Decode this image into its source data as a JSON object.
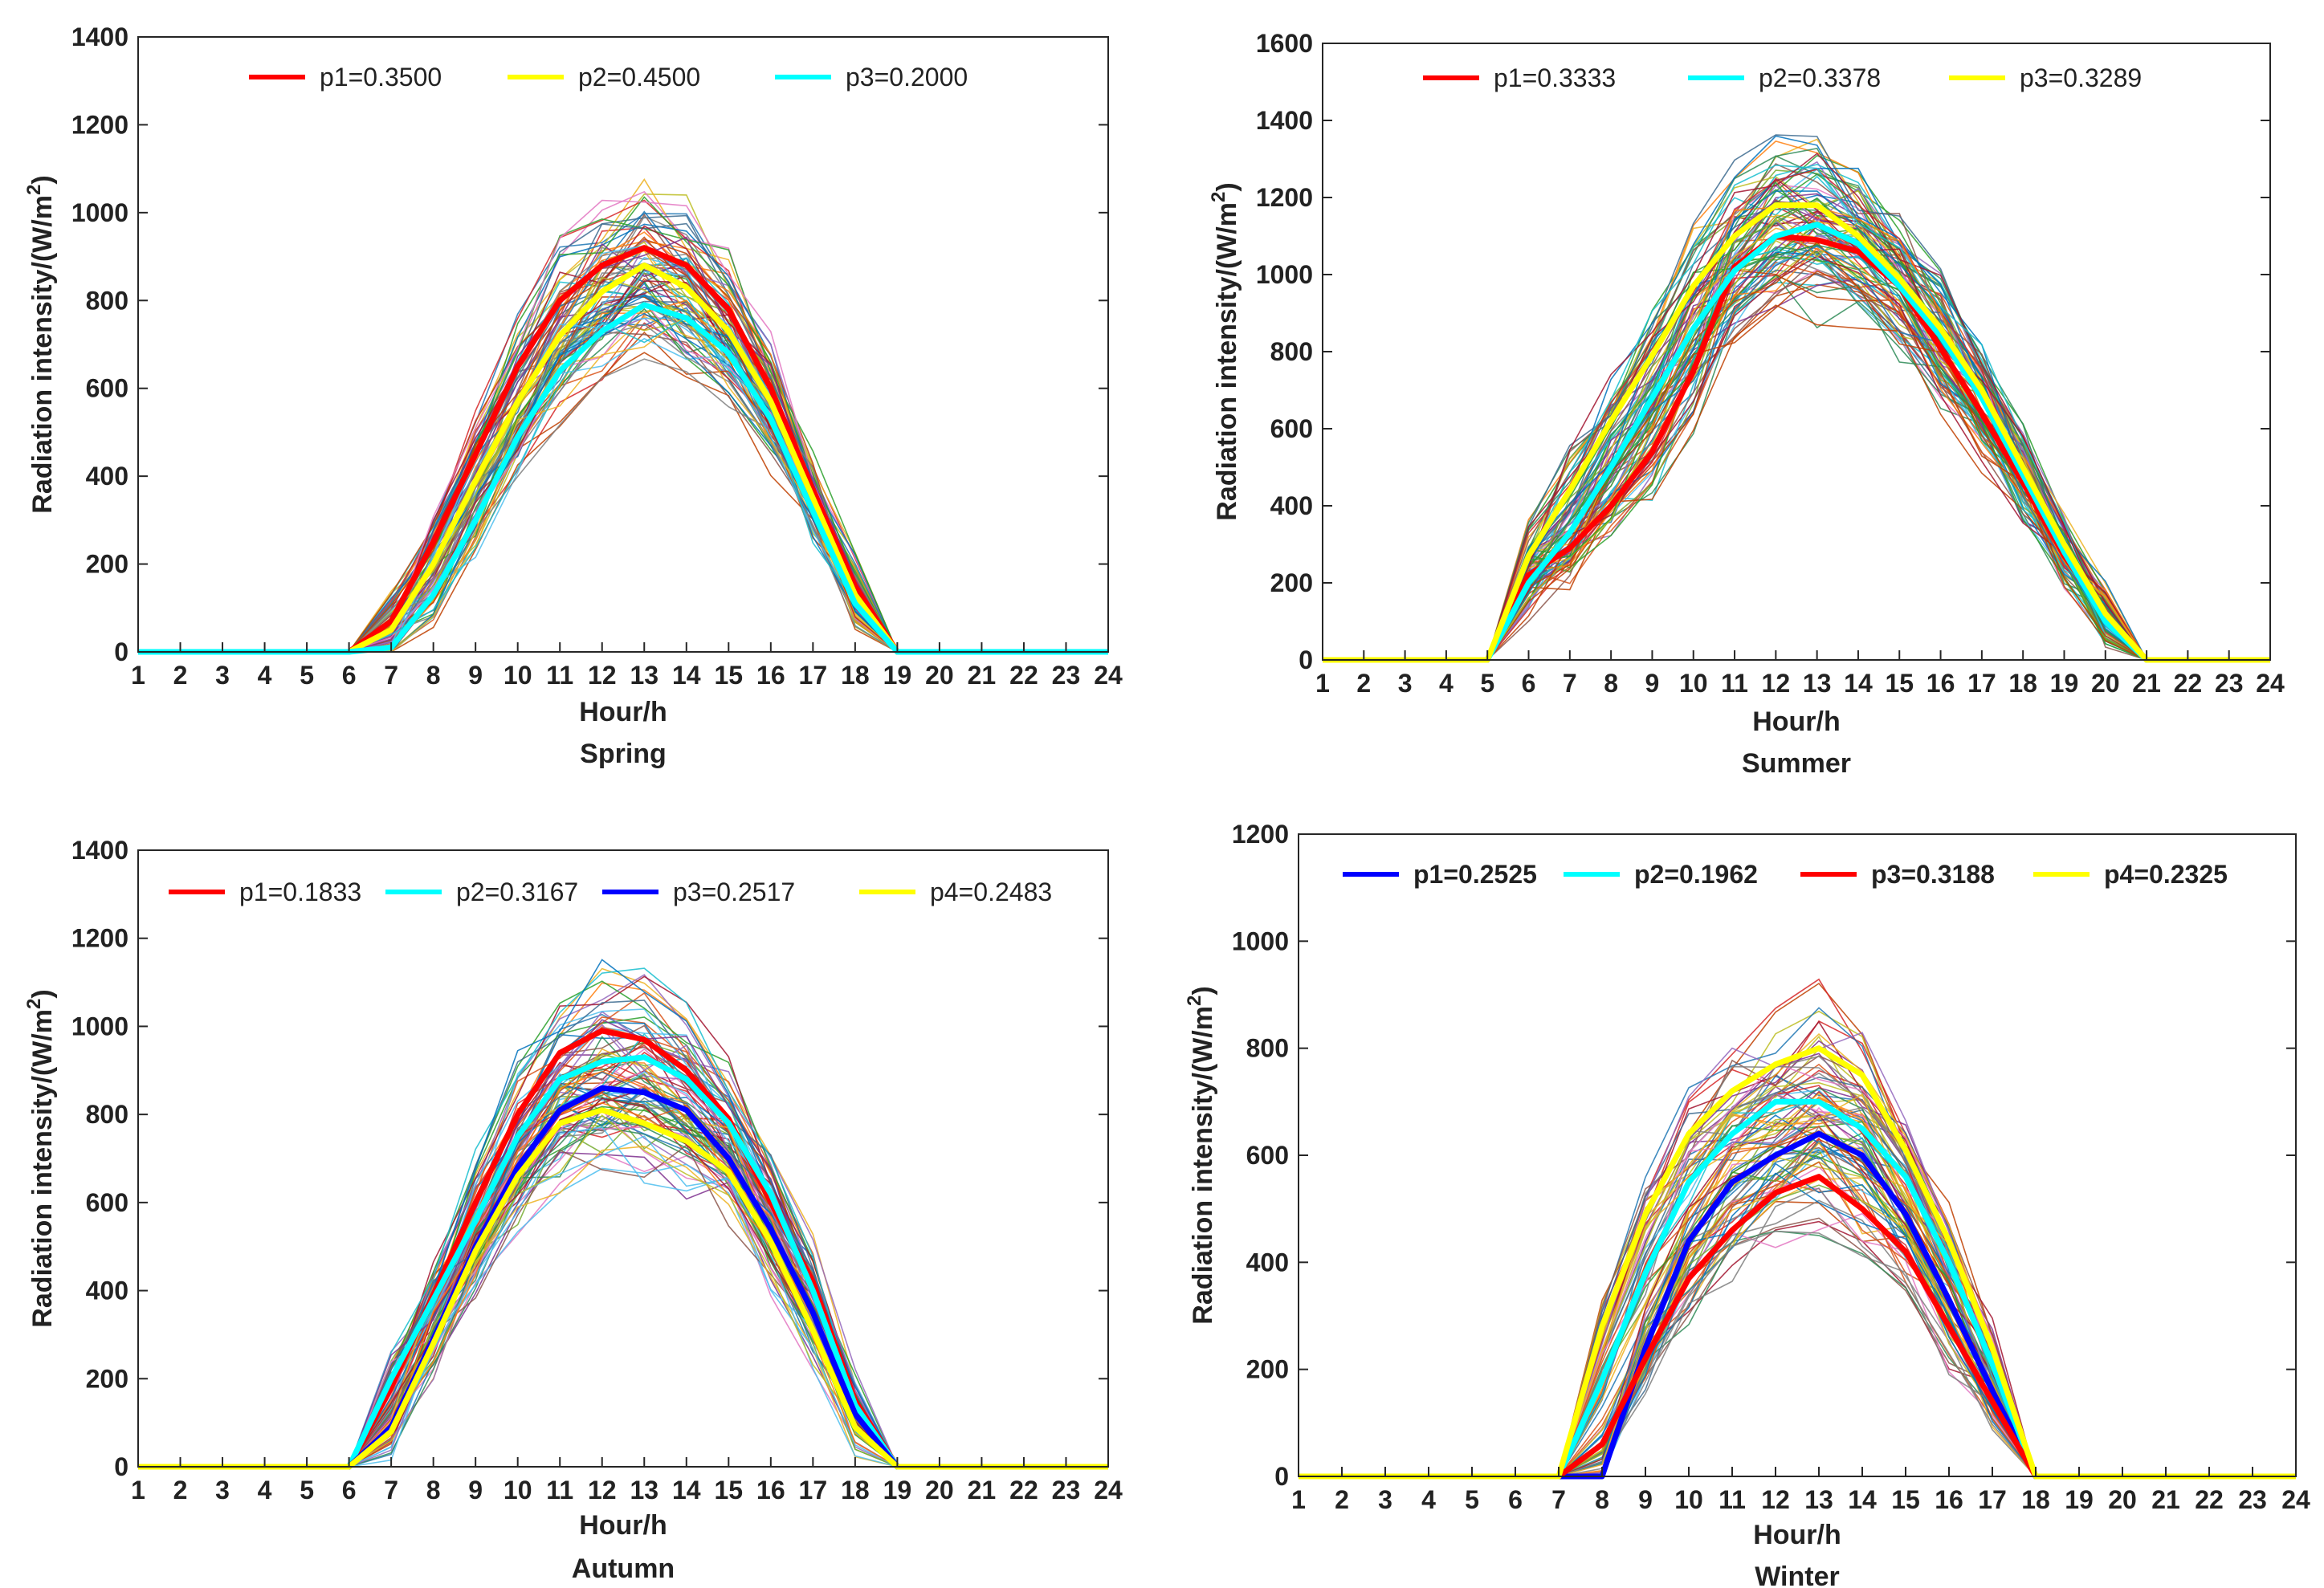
{
  "chart_data": [
    {
      "id": "spring",
      "type": "line",
      "title": "Spring",
      "xlabel": "Hour/h",
      "ylabel": "Radiation intensity/(W/m²)",
      "ylabel_main": "Radiation intensity/(W/m",
      "ylabel_sup": "2",
      "ylabel_tail": ")",
      "xlim": [
        1,
        24
      ],
      "ylim": [
        0,
        1400
      ],
      "yticks": [
        0,
        200,
        400,
        600,
        800,
        1000,
        1200,
        1400
      ],
      "xticks": [
        1,
        2,
        3,
        4,
        5,
        6,
        7,
        8,
        9,
        10,
        11,
        12,
        13,
        14,
        15,
        16,
        17,
        18,
        19,
        20,
        21,
        22,
        23,
        24
      ],
      "legend_bold": false,
      "sunrise": 6,
      "sunset": 19,
      "series": [
        {
          "name": "p1=0.3500",
          "color": "#ff0000",
          "values": [
            0,
            0,
            0,
            0,
            0,
            0,
            70,
            250,
            450,
            650,
            800,
            880,
            920,
            880,
            780,
            600,
            370,
            150,
            0,
            0,
            0,
            0,
            0,
            0
          ]
        },
        {
          "name": "p2=0.4500",
          "color": "#ffff00",
          "values": [
            0,
            0,
            0,
            0,
            0,
            0,
            50,
            200,
            390,
            570,
            720,
            820,
            880,
            830,
            730,
            570,
            350,
            130,
            0,
            0,
            0,
            0,
            0,
            0
          ]
        },
        {
          "name": "p3=0.2000",
          "color": "#00ffff",
          "values": [
            0,
            0,
            0,
            0,
            0,
            0,
            10,
            130,
            300,
            490,
            640,
            730,
            790,
            760,
            680,
            530,
            320,
            110,
            0,
            0,
            0,
            0,
            0,
            0
          ]
        }
      ]
    },
    {
      "id": "summer",
      "type": "line",
      "title": "Summer",
      "xlabel": "Hour/h",
      "ylabel": "Radiation intensity/(W/m²)",
      "ylabel_main": "Radiation intensity/(W/m",
      "ylabel_sup": "2",
      "ylabel_tail": ")",
      "xlim": [
        1,
        24
      ],
      "ylim": [
        0,
        1600
      ],
      "yticks": [
        0,
        200,
        400,
        600,
        800,
        1000,
        1200,
        1400,
        1600
      ],
      "xticks": [
        1,
        2,
        3,
        4,
        5,
        6,
        7,
        8,
        9,
        10,
        11,
        12,
        13,
        14,
        15,
        16,
        17,
        18,
        19,
        20,
        21,
        22,
        23,
        24
      ],
      "legend_bold": false,
      "sunrise": 5,
      "sunset": 21,
      "series": [
        {
          "name": "p1=0.3333",
          "color": "#ff0000",
          "values": [
            0,
            0,
            0,
            0,
            0,
            220,
            290,
            400,
            540,
            750,
            1020,
            1100,
            1090,
            1060,
            970,
            810,
            640,
            460,
            270,
            120,
            0,
            0,
            0,
            0
          ]
        },
        {
          "name": "p2=0.3378",
          "color": "#00ffff",
          "values": [
            0,
            0,
            0,
            0,
            0,
            200,
            330,
            500,
            680,
            860,
            1010,
            1100,
            1130,
            1080,
            970,
            840,
            680,
            480,
            280,
            100,
            0,
            0,
            0,
            0
          ]
        },
        {
          "name": "p3=0.3289",
          "color": "#ffff00",
          "values": [
            0,
            0,
            0,
            0,
            0,
            270,
            440,
            620,
            790,
            970,
            1100,
            1180,
            1180,
            1100,
            990,
            860,
            700,
            500,
            300,
            120,
            0,
            0,
            0,
            0
          ]
        }
      ]
    },
    {
      "id": "autumn",
      "type": "line",
      "title": "Autumn",
      "xlabel": "Hour/h",
      "ylabel": "Radiation intensity/(W/m²)",
      "ylabel_main": "Radiation intensity/(W/m",
      "ylabel_sup": "2",
      "ylabel_tail": ")",
      "xlim": [
        1,
        24
      ],
      "ylim": [
        0,
        1400
      ],
      "yticks": [
        0,
        200,
        400,
        600,
        800,
        1000,
        1200,
        1400
      ],
      "xticks": [
        1,
        2,
        3,
        4,
        5,
        6,
        7,
        8,
        9,
        10,
        11,
        12,
        13,
        14,
        15,
        16,
        17,
        18,
        19,
        20,
        21,
        22,
        23,
        24
      ],
      "legend_bold": false,
      "sunrise": 6,
      "sunset": 19,
      "series": [
        {
          "name": "p1=0.1833",
          "color": "#ff0000",
          "values": [
            0,
            0,
            0,
            0,
            0,
            0,
            180,
            390,
            600,
            800,
            940,
            990,
            970,
            900,
            790,
            600,
            420,
            150,
            0,
            0,
            0,
            0,
            0,
            0
          ]
        },
        {
          "name": "p2=0.3167",
          "color": "#00ffff",
          "values": [
            0,
            0,
            0,
            0,
            0,
            0,
            200,
            380,
            560,
            750,
            880,
            920,
            930,
            880,
            780,
            620,
            400,
            140,
            0,
            0,
            0,
            0,
            0,
            0
          ]
        },
        {
          "name": "p3=0.2517",
          "color": "#0000ff",
          "values": [
            0,
            0,
            0,
            0,
            0,
            0,
            90,
            290,
            500,
            680,
            810,
            860,
            850,
            810,
            700,
            540,
            350,
            120,
            0,
            0,
            0,
            0,
            0,
            0
          ]
        },
        {
          "name": "p4=0.2483",
          "color": "#ffff00",
          "values": [
            0,
            0,
            0,
            0,
            0,
            0,
            80,
            280,
            490,
            660,
            780,
            810,
            780,
            740,
            670,
            510,
            310,
            90,
            0,
            0,
            0,
            0,
            0,
            0
          ]
        }
      ]
    },
    {
      "id": "winter",
      "type": "line",
      "title": "Winter",
      "xlabel": "Hour/h",
      "ylabel": "Radiation intensity/(W/m²)",
      "ylabel_main": "Radiation intensity/(W/m",
      "ylabel_sup": "2",
      "ylabel_tail": ")",
      "xlim": [
        1,
        24
      ],
      "ylim": [
        0,
        1200
      ],
      "yticks": [
        0,
        200,
        400,
        600,
        800,
        1000,
        1200
      ],
      "xticks": [
        1,
        2,
        3,
        4,
        5,
        6,
        7,
        8,
        9,
        10,
        11,
        12,
        13,
        14,
        15,
        16,
        17,
        18,
        19,
        20,
        21,
        22,
        23,
        24
      ],
      "legend_bold": true,
      "sunrise": 7,
      "sunset": 18,
      "series": [
        {
          "name": "p1=0.2525",
          "color": "#0000ff",
          "values": [
            0,
            0,
            0,
            0,
            0,
            0,
            0,
            0,
            240,
            440,
            550,
            600,
            640,
            600,
            490,
            330,
            160,
            0,
            0,
            0,
            0,
            0,
            0,
            0
          ]
        },
        {
          "name": "p2=0.1962",
          "color": "#00ffff",
          "values": [
            0,
            0,
            0,
            0,
            0,
            0,
            0,
            180,
            380,
            550,
            640,
            700,
            700,
            650,
            560,
            400,
            210,
            0,
            0,
            0,
            0,
            0,
            0,
            0
          ]
        },
        {
          "name": "p3=0.3188",
          "color": "#ff0000",
          "values": [
            0,
            0,
            0,
            0,
            0,
            0,
            0,
            60,
            220,
            370,
            460,
            530,
            560,
            500,
            420,
            280,
            140,
            0,
            0,
            0,
            0,
            0,
            0,
            0
          ]
        },
        {
          "name": "p4=0.2325",
          "color": "#ffff00",
          "values": [
            0,
            0,
            0,
            0,
            0,
            0,
            0,
            280,
            490,
            640,
            720,
            770,
            800,
            750,
            610,
            440,
            240,
            0,
            0,
            0,
            0,
            0,
            0,
            0
          ]
        }
      ]
    }
  ]
}
